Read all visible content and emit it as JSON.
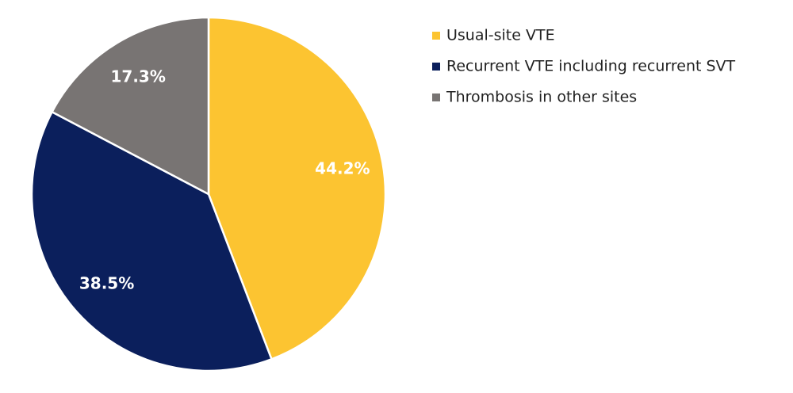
{
  "chart_data": {
    "type": "pie",
    "categories": [
      "Usual-site VTE",
      "Recurrent VTE including recurrent SVT",
      "Thrombosis in other sites"
    ],
    "values": [
      44.2,
      38.5,
      17.3
    ],
    "value_labels": [
      "44.2%",
      "38.5%",
      "17.3%"
    ],
    "colors": [
      "#fcc431",
      "#0b1f5c",
      "#787473"
    ],
    "legend": "top-right"
  }
}
